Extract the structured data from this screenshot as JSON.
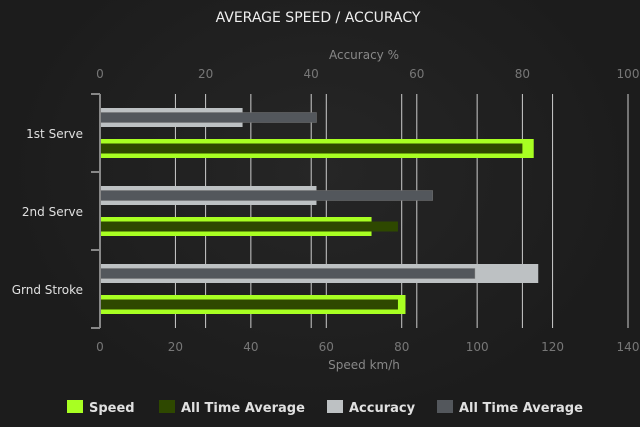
{
  "chart_data": {
    "type": "bar",
    "orientation": "horizontal",
    "title": "AVERAGE SPEED / ACCURACY",
    "categories": [
      "1st Serve",
      "2nd Serve",
      "Grnd Stroke"
    ],
    "x_top": {
      "label": "Accuracy %",
      "range": [
        0,
        100
      ],
      "ticks": [
        0,
        20,
        40,
        60,
        80,
        100
      ]
    },
    "x_bottom": {
      "label": "Speed km/h",
      "range": [
        0,
        140
      ],
      "ticks": [
        0,
        20,
        40,
        60,
        80,
        100,
        120,
        140
      ]
    },
    "grid": true,
    "legend_position": "bottom",
    "series": [
      {
        "name": "Speed",
        "axis": "bottom",
        "color": "#a8ff22",
        "values": [
          115,
          72,
          81
        ]
      },
      {
        "name": "All Time Average",
        "axis": "bottom",
        "color": "#2e4800",
        "values": [
          112,
          79,
          79
        ]
      },
      {
        "name": "Accuracy",
        "axis": "top",
        "color": "#bdc1c3",
        "values": [
          27,
          41,
          83
        ]
      },
      {
        "name": "All Time Average",
        "axis": "top",
        "color": "#53575c",
        "values": [
          41,
          63,
          71
        ]
      }
    ]
  }
}
